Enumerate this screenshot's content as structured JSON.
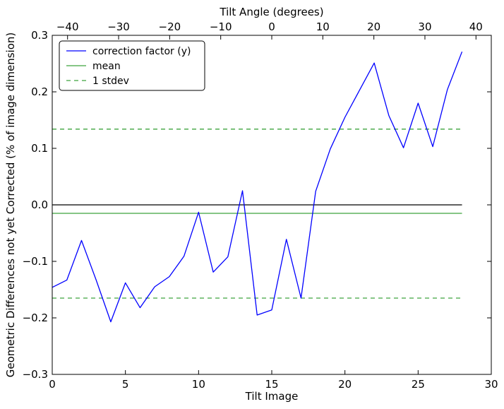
{
  "chart_data": {
    "type": "line",
    "xlabel": "Tilt Image",
    "ylabel": "Geometric Differences not yet Corrected (% of image dimension)",
    "top_xlabel": "Tilt Angle (degrees)",
    "xlim": [
      0,
      30
    ],
    "ylim": [
      -0.3,
      0.3
    ],
    "top_xlim": [
      -43,
      43
    ],
    "x_ticks": [
      0,
      5,
      10,
      15,
      20,
      25,
      30
    ],
    "x_tick_labels": [
      "0",
      "5",
      "10",
      "15",
      "20",
      "25",
      "30"
    ],
    "y_ticks": [
      -0.3,
      -0.2,
      -0.1,
      0.0,
      0.1,
      0.2,
      0.3
    ],
    "y_tick_labels": [
      "−0.3",
      "−0.2",
      "−0.1",
      "0.0",
      "0.1",
      "0.2",
      "0.3"
    ],
    "top_x_ticks": [
      -40,
      -30,
      -20,
      -10,
      0,
      10,
      20,
      30,
      40
    ],
    "top_x_tick_labels": [
      "−40",
      "−30",
      "−20",
      "−10",
      "0",
      "10",
      "20",
      "30",
      "40"
    ],
    "grid": false,
    "legend_position": "top-left",
    "series": [
      {
        "name": "correction factor (y)",
        "color": "#0000ff",
        "style": "solid",
        "x": [
          0,
          1,
          2,
          3,
          4,
          5,
          6,
          7,
          8,
          9,
          10,
          11,
          12,
          13,
          14,
          15,
          16,
          17,
          18,
          19,
          20,
          21,
          22,
          23,
          24,
          25,
          26,
          27,
          28
        ],
        "y": [
          -0.146,
          -0.133,
          -0.063,
          -0.133,
          -0.207,
          -0.138,
          -0.182,
          -0.145,
          -0.127,
          -0.091,
          -0.013,
          -0.119,
          -0.092,
          0.025,
          -0.195,
          -0.186,
          -0.061,
          -0.165,
          0.024,
          0.099,
          0.155,
          0.203,
          0.251,
          0.158,
          0.101,
          0.18,
          0.103,
          0.204,
          0.271
        ]
      },
      {
        "name": "mean",
        "color": "#3fa43f",
        "style": "solid",
        "x": [
          0,
          28
        ],
        "y": [
          -0.015,
          -0.015
        ]
      },
      {
        "name": "1 stdev",
        "color": "#3fa43f",
        "style": "dashed",
        "x": [
          0,
          28
        ],
        "y": [
          0.134,
          0.134
        ]
      },
      {
        "name": "",
        "color": "#3fa43f",
        "style": "dashed",
        "x": [
          0,
          28
        ],
        "y": [
          -0.165,
          -0.165
        ]
      },
      {
        "name": "",
        "color": "#000000",
        "style": "solid",
        "x": [
          0,
          28
        ],
        "y": [
          0.0,
          0.0
        ]
      }
    ]
  }
}
